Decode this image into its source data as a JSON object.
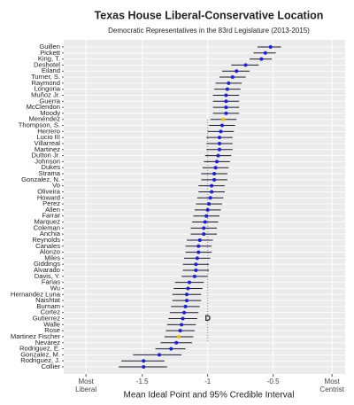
{
  "chart_data": {
    "type": "dotinterval",
    "title": "Texas House Liberal-Conservative Location",
    "subtitle": "Democratic Representatives in the 83rd Legislature (2013-2015)",
    "x_label": "Mean Ideal Point and 95% Credible Interval",
    "annotation": "D",
    "categories": [
      "Guillen",
      "Pickett",
      "King, T.",
      "Deshotel",
      "Eiland",
      "Turner, S.",
      "Raymond",
      "Longoria",
      "Muñoz Jr.",
      "Guerra",
      "McClendon",
      "Moody",
      "Menéndez",
      "Thompson, S.",
      "Herrero",
      "Lucio III",
      "Villarreal",
      "Martinez",
      "Dutton Jr.",
      "Johnson",
      "Dukes",
      "Strama",
      "Gonzalez, N.",
      "Vo",
      "Oliveira",
      "Howard",
      "Perez",
      "Allen",
      "Farrar",
      "Marquez",
      "Coleman",
      "Anchia",
      "Reynolds",
      "Canales",
      "Alonzo",
      "Miles",
      "Giddings",
      "Alvarado",
      "Davis, Y.",
      "Farias",
      "Wu",
      "Hernandez Luna",
      "Naishtat",
      "Burnam",
      "Cortez",
      "Gutierrez",
      "Walle",
      "Rose",
      "Martinez Fischer",
      "Nevárez",
      "Rodriguez, E.",
      "Gonzalez, M.",
      "Rodriguez, J.",
      "Collier"
    ],
    "values": [
      -0.52,
      -0.56,
      -0.59,
      -0.71,
      -0.78,
      -0.81,
      -0.84,
      -0.85,
      -0.86,
      -0.86,
      -0.86,
      -0.86,
      -0.88,
      -0.89,
      -0.9,
      -0.91,
      -0.91,
      -0.91,
      -0.92,
      -0.93,
      -0.94,
      -0.95,
      -0.95,
      -0.97,
      -0.97,
      -0.98,
      -0.99,
      -1.0,
      -1.01,
      -1.02,
      -1.03,
      -1.03,
      -1.06,
      -1.07,
      -1.07,
      -1.08,
      -1.09,
      -1.09,
      -1.1,
      -1.14,
      -1.15,
      -1.16,
      -1.16,
      -1.17,
      -1.18,
      -1.19,
      -1.2,
      -1.21,
      -1.22,
      -1.24,
      -1.28,
      -1.37,
      -1.49,
      -1.49
    ],
    "lower": [
      -0.62,
      -0.65,
      -0.68,
      -0.82,
      -0.89,
      -0.91,
      -0.94,
      -0.95,
      -0.96,
      -0.96,
      -0.96,
      -0.96,
      -0.98,
      -0.99,
      -1.0,
      -1.01,
      -1.01,
      -1.01,
      -1.02,
      -1.03,
      -1.04,
      -1.05,
      -1.05,
      -1.07,
      -1.07,
      -1.08,
      -1.09,
      -1.1,
      -1.11,
      -1.12,
      -1.13,
      -1.13,
      -1.16,
      -1.17,
      -1.17,
      -1.18,
      -1.19,
      -1.19,
      -1.2,
      -1.25,
      -1.26,
      -1.27,
      -1.27,
      -1.28,
      -1.29,
      -1.3,
      -1.31,
      -1.32,
      -1.33,
      -1.36,
      -1.4,
      -1.57,
      -1.66,
      -1.68
    ],
    "upper": [
      -0.44,
      -0.48,
      -0.51,
      -0.61,
      -0.68,
      -0.71,
      -0.74,
      -0.75,
      -0.76,
      -0.76,
      -0.76,
      -0.76,
      -0.78,
      -0.79,
      -0.8,
      -0.81,
      -0.81,
      -0.81,
      -0.82,
      -0.83,
      -0.84,
      -0.85,
      -0.85,
      -0.87,
      -0.87,
      -0.88,
      -0.89,
      -0.9,
      -0.91,
      -0.92,
      -0.93,
      -0.93,
      -0.96,
      -0.97,
      -0.97,
      -0.98,
      -0.99,
      -0.99,
      -1.0,
      -1.03,
      -1.04,
      -1.05,
      -1.05,
      -1.06,
      -1.07,
      -1.08,
      -1.09,
      -1.1,
      -1.11,
      -1.12,
      -1.17,
      -1.2,
      -1.33,
      -1.31
    ],
    "colors": [
      "#1f1fd8",
      "#1f1fd8",
      "#1f1fd8",
      "#1f1fd8",
      "#1f1fd8",
      "#1f1fd8",
      "#1f1fd8",
      "#1f1fd8",
      "#1f1fd8",
      "#1f1fd8",
      "#1f1fd8",
      "#1f1fd8",
      "#e6c800",
      "#1f1fd8",
      "#1f1fd8",
      "#1f1fd8",
      "#1f1fd8",
      "#1f1fd8",
      "#1f1fd8",
      "#1f1fd8",
      "#1f1fd8",
      "#1f1fd8",
      "#1f1fd8",
      "#1f1fd8",
      "#1f1fd8",
      "#1f1fd8",
      "#1f1fd8",
      "#1f1fd8",
      "#1f1fd8",
      "#1f1fd8",
      "#1f1fd8",
      "#1f1fd8",
      "#1f1fd8",
      "#1f1fd8",
      "#1f1fd8",
      "#1f1fd8",
      "#1f1fd8",
      "#1f1fd8",
      "#1f1fd8",
      "#1f1fd8",
      "#1f1fd8",
      "#1f1fd8",
      "#1f1fd8",
      "#1f1fd8",
      "#1f1fd8",
      "#1f1fd8",
      "#1f1fd8",
      "#1f1fd8",
      "#e6c800",
      "#1f1fd8",
      "#1f1fd8",
      "#1f1fd8",
      "#1f1fd8",
      "#1f1fd8"
    ],
    "errorbar_color": "#1b1b2a",
    "xlim": [
      -2.1,
      0.05
    ],
    "xticks": [
      {
        "value": -1.93,
        "label": "Most\nLiberal"
      },
      -1.5,
      -1,
      -0.5,
      {
        "value": -0.05,
        "label": "Most\nCentrist"
      }
    ],
    "grid": true
  }
}
